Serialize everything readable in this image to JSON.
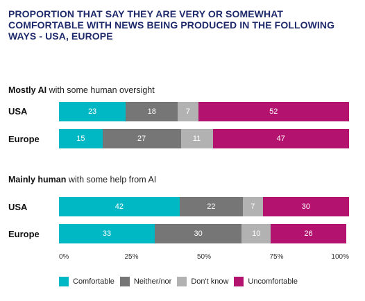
{
  "chart_data": {
    "type": "bar",
    "orientation": "horizontal",
    "stacked": true,
    "title": "PROPORTION THAT SAY THEY ARE VERY OR SOMEWHAT COMFORTABLE WITH NEWS BEING PRODUCED IN THE FOLLOWING WAYS - USA, EUROPE",
    "xlim": [
      0,
      100
    ],
    "x_ticks": [
      "0%",
      "25%",
      "50%",
      "75%",
      "100%"
    ],
    "legend": {
      "placement": "bottom",
      "entries": [
        "Comfortable",
        "Neither/nor",
        "Don't know",
        "Uncomfortable"
      ]
    },
    "colors": [
      "#00b8c4",
      "#767676",
      "#b2b2b2",
      "#b3126f"
    ],
    "groups": [
      {
        "title_bold": "Mostly AI",
        "title_rest": " with some human oversight",
        "rows": [
          {
            "label": "USA",
            "values": [
              23,
              18,
              7,
              52
            ]
          },
          {
            "label": "Europe",
            "values": [
              15,
              27,
              11,
              47
            ]
          }
        ]
      },
      {
        "title_bold": "Mainly human",
        "title_rest": " with some help from AI",
        "rows": [
          {
            "label": "USA",
            "values": [
              42,
              22,
              7,
              30
            ]
          },
          {
            "label": "Europe",
            "values": [
              33,
              30,
              10,
              26
            ]
          }
        ]
      }
    ]
  }
}
